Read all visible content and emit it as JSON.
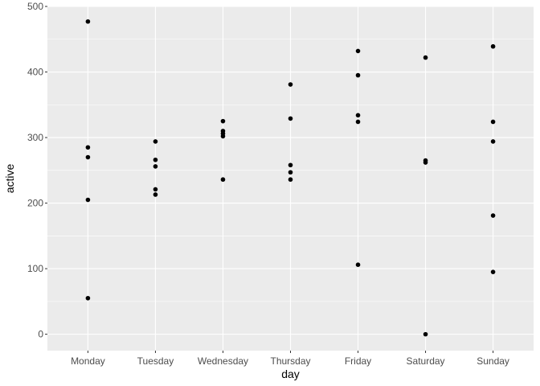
{
  "chart_data": {
    "type": "scatter",
    "title": "",
    "xlabel": "day",
    "ylabel": "active",
    "categories": [
      "Monday",
      "Tuesday",
      "Wednesday",
      "Thursday",
      "Friday",
      "Saturday",
      "Sunday"
    ],
    "ylim": [
      -25,
      500
    ],
    "yticks": [
      0,
      100,
      200,
      300,
      400,
      500
    ],
    "ytick_labels": [
      "0",
      "100",
      "200",
      "300",
      "400",
      "500"
    ],
    "grid": true,
    "legend": "none",
    "colors": {
      "panel_background": "#EBEBEB",
      "grid_major": "#FFFFFF",
      "point": "#000000"
    },
    "points": [
      {
        "x": "Monday",
        "y": 477
      },
      {
        "x": "Monday",
        "y": 285
      },
      {
        "x": "Monday",
        "y": 270
      },
      {
        "x": "Monday",
        "y": 205
      },
      {
        "x": "Monday",
        "y": 55
      },
      {
        "x": "Tuesday",
        "y": 294
      },
      {
        "x": "Tuesday",
        "y": 266
      },
      {
        "x": "Tuesday",
        "y": 256
      },
      {
        "x": "Tuesday",
        "y": 221
      },
      {
        "x": "Tuesday",
        "y": 213
      },
      {
        "x": "Wednesday",
        "y": 325
      },
      {
        "x": "Wednesday",
        "y": 310
      },
      {
        "x": "Wednesday",
        "y": 306
      },
      {
        "x": "Wednesday",
        "y": 302
      },
      {
        "x": "Wednesday",
        "y": 236
      },
      {
        "x": "Thursday",
        "y": 381
      },
      {
        "x": "Thursday",
        "y": 329
      },
      {
        "x": "Thursday",
        "y": 258
      },
      {
        "x": "Thursday",
        "y": 247
      },
      {
        "x": "Thursday",
        "y": 236
      },
      {
        "x": "Friday",
        "y": 432
      },
      {
        "x": "Friday",
        "y": 395
      },
      {
        "x": "Friday",
        "y": 334
      },
      {
        "x": "Friday",
        "y": 324
      },
      {
        "x": "Friday",
        "y": 106
      },
      {
        "x": "Saturday",
        "y": 422
      },
      {
        "x": "Saturday",
        "y": 265
      },
      {
        "x": "Saturday",
        "y": 262
      },
      {
        "x": "Saturday",
        "y": 0
      },
      {
        "x": "Sunday",
        "y": 439
      },
      {
        "x": "Sunday",
        "y": 324
      },
      {
        "x": "Sunday",
        "y": 294
      },
      {
        "x": "Sunday",
        "y": 181
      },
      {
        "x": "Sunday",
        "y": 95
      }
    ]
  }
}
